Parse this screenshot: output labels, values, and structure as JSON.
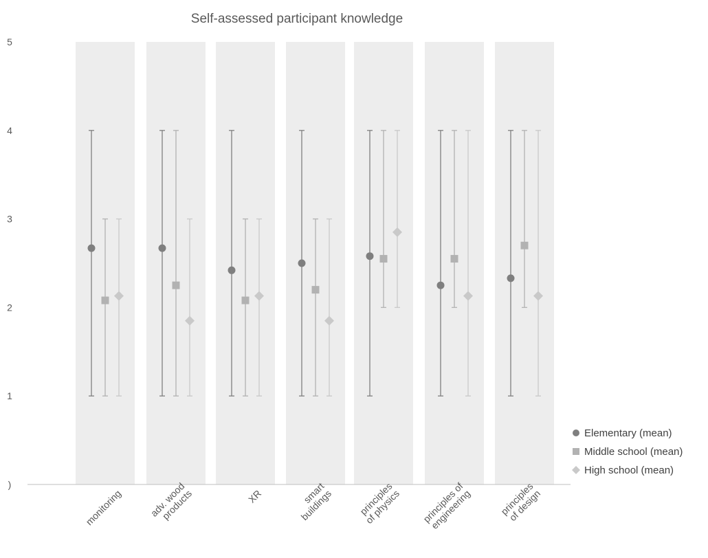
{
  "chart_data": {
    "type": "scatter",
    "title": "Self-assessed participant knowledge",
    "xlabel": "",
    "ylabel": "",
    "ylim": [
      0,
      5
    ],
    "ytick_labels": [
      ")",
      "1",
      "2",
      "3",
      "4",
      "5"
    ],
    "categories": [
      [
        "monitoring"
      ],
      [
        "adv. wood",
        "products"
      ],
      [
        "XR"
      ],
      [
        "smart",
        "buildings"
      ],
      [
        "principles",
        "of physics"
      ],
      [
        "principles of",
        "engineering"
      ],
      [
        "principles",
        "of design"
      ]
    ],
    "legend_position": "right",
    "grid": false,
    "series": [
      {
        "name": "Elementary (mean)",
        "marker": "circle",
        "color": "#7f7f7f",
        "values": [
          2.67,
          2.67,
          2.42,
          2.5,
          2.58,
          2.25,
          2.33
        ],
        "err_low": [
          1,
          1,
          1,
          1,
          1,
          1,
          1
        ],
        "err_high": [
          4,
          4,
          4,
          4,
          4,
          4,
          4
        ]
      },
      {
        "name": "Middle school (mean)",
        "marker": "square",
        "color": "#b2b2b2",
        "values": [
          2.08,
          2.25,
          2.08,
          2.2,
          2.55,
          2.55,
          2.7
        ],
        "err_low": [
          1,
          1,
          1,
          1,
          2,
          2,
          2
        ],
        "err_high": [
          3,
          4,
          3,
          3,
          4,
          4,
          4
        ]
      },
      {
        "name": "High school (mean)",
        "marker": "diamond",
        "color": "#c9c9c9",
        "values": [
          2.13,
          1.85,
          2.13,
          1.85,
          2.85,
          2.13,
          2.13
        ],
        "err_low": [
          1,
          1,
          1,
          1,
          2,
          1,
          1
        ],
        "err_high": [
          3,
          3,
          3,
          3,
          4,
          4,
          4
        ]
      }
    ],
    "band_color": "#ededed",
    "axis_color": "#bfbfbf"
  }
}
